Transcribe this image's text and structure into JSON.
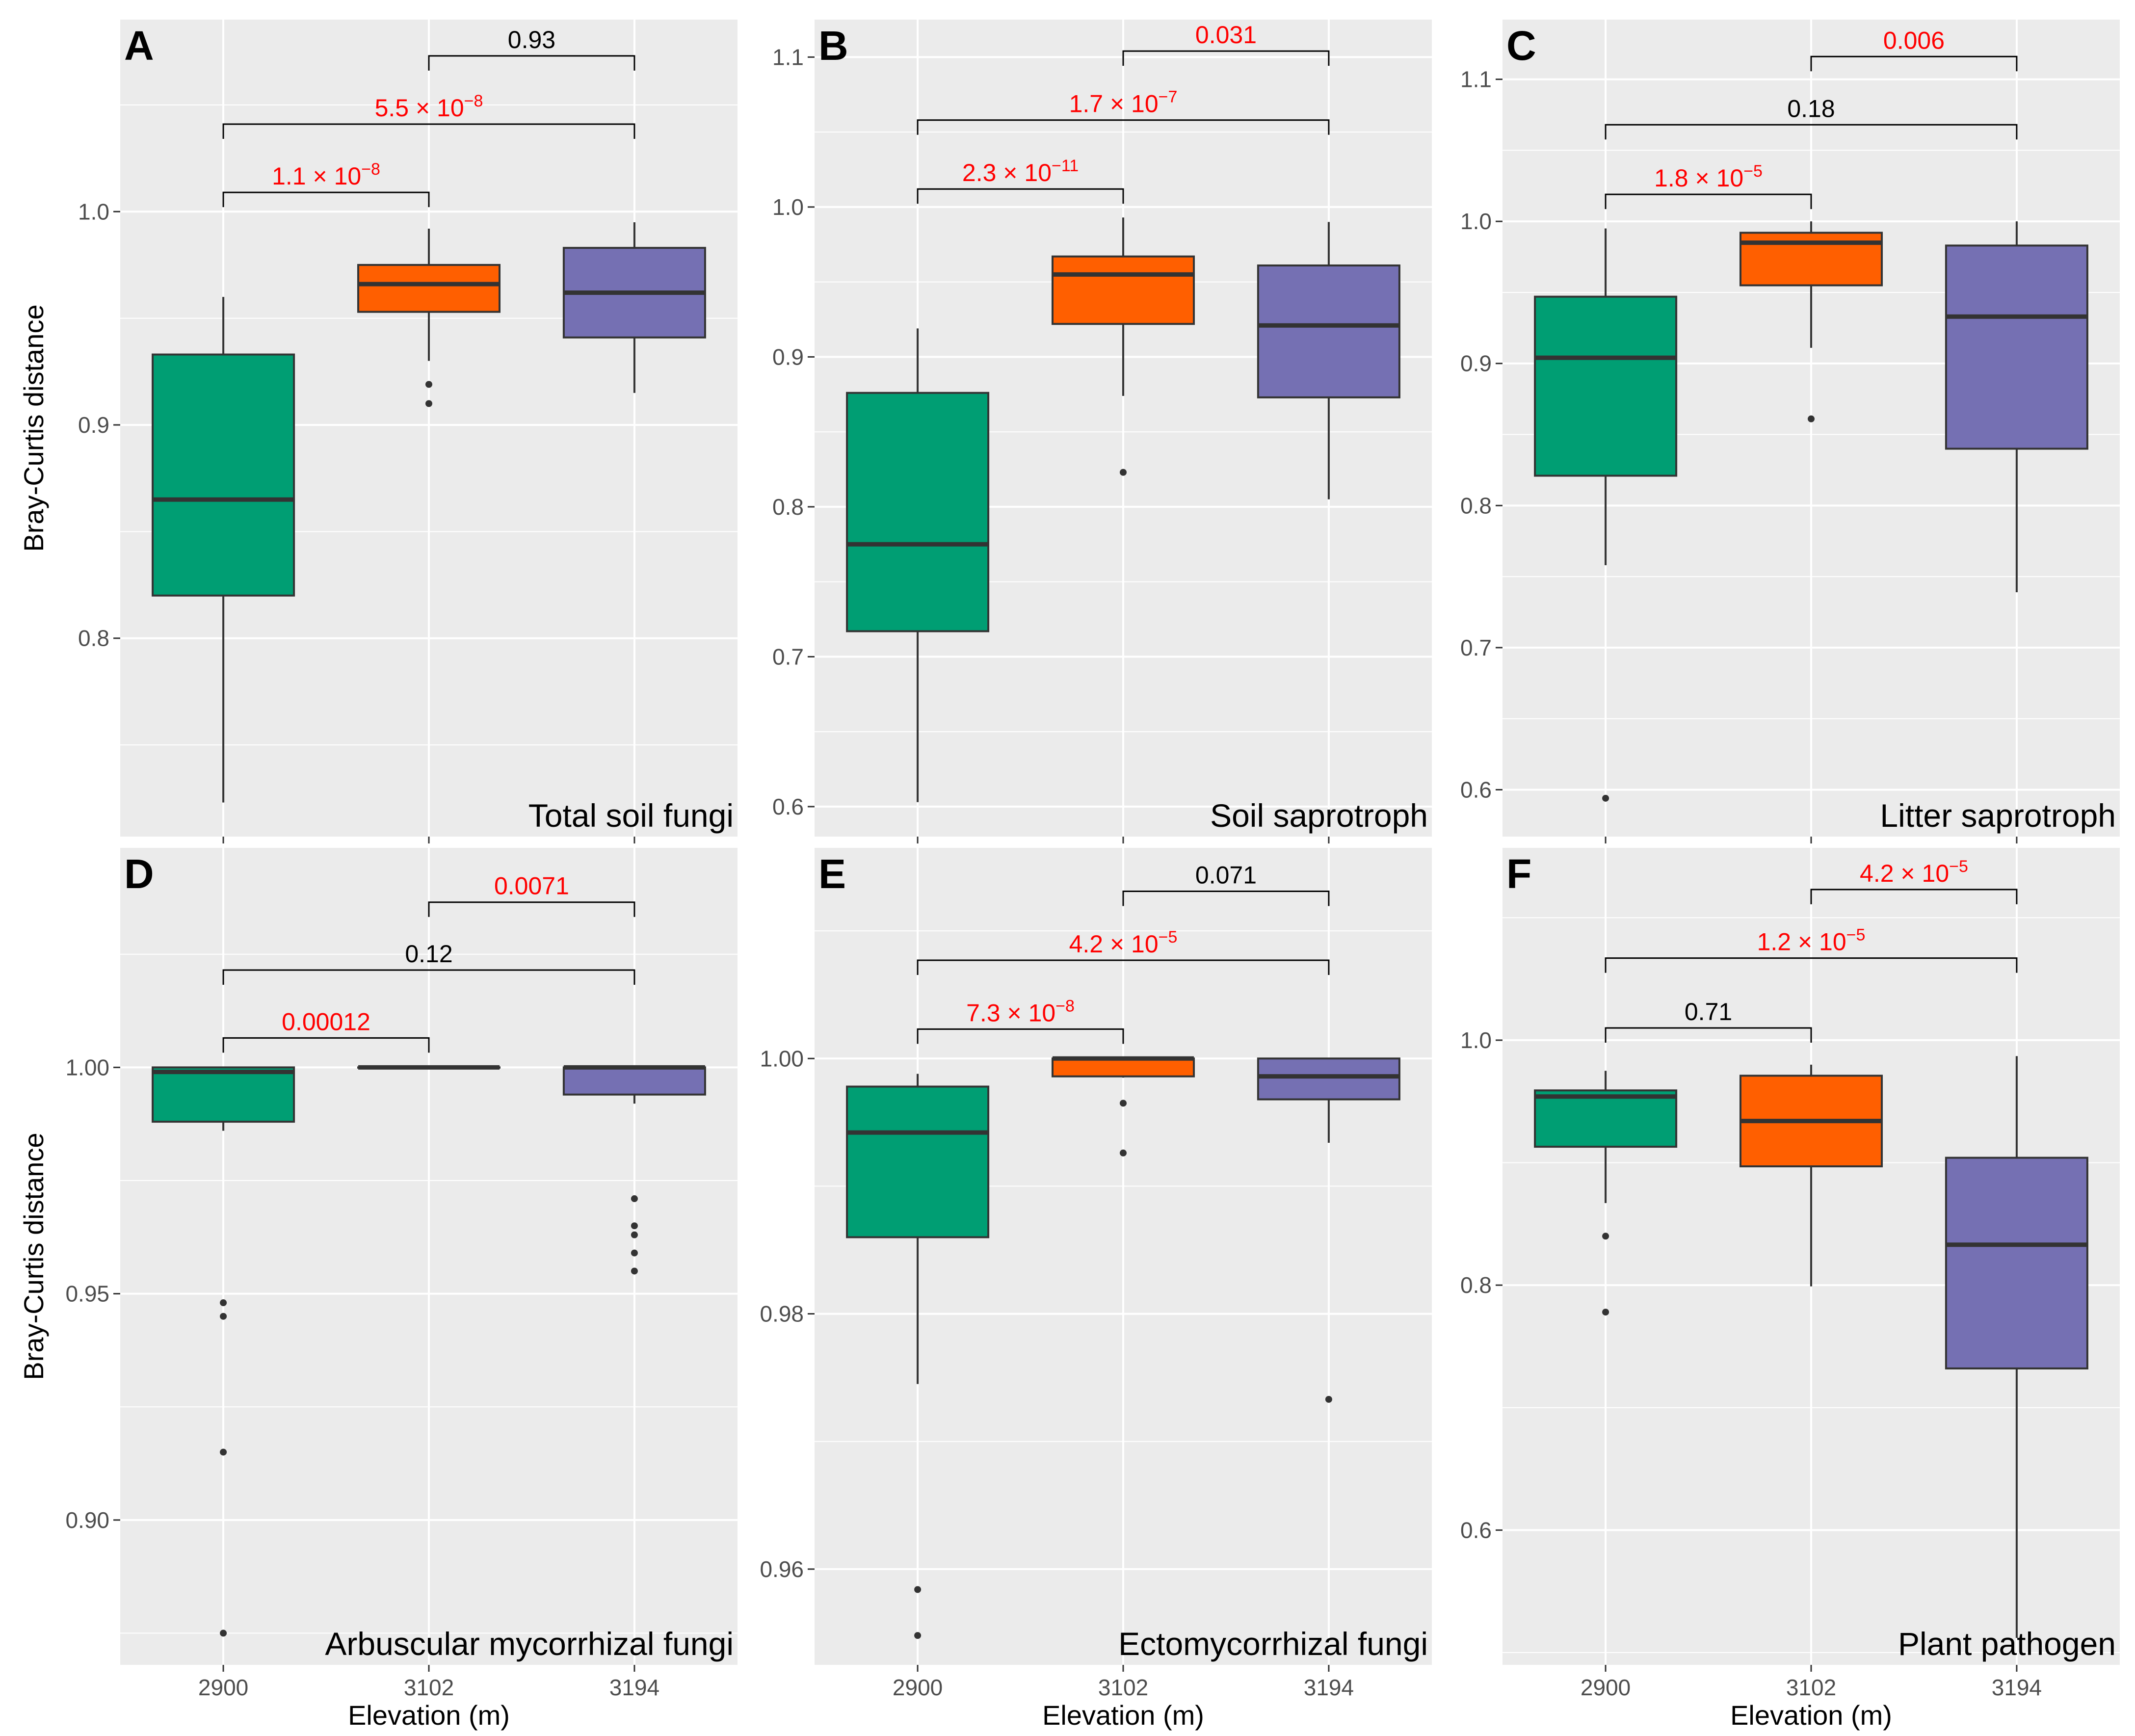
{
  "chart_data": {
    "type": "boxplot",
    "xlabel": "Elevation (m)",
    "ylabel": "Bray-Curtis distance",
    "categories": [
      "2900",
      "3102",
      "3194"
    ],
    "colors": {
      "2900": "#009e73",
      "3102": "#ff5f00",
      "3194": "#7570b3",
      "panel_bg": "#ebebeb",
      "grid": "#ffffff",
      "box_line": "#333333",
      "sig_text": "#ff0000",
      "nonsig_text": "#000000"
    },
    "panels": [
      {
        "letter": "A",
        "subtitle": "Total soil fungi",
        "ylim": [
          0.707,
          1.09
        ],
        "yticks": [
          0.8,
          0.9,
          1.0
        ],
        "ytick_labels": [
          "0.8",
          "0.9",
          "1.0"
        ],
        "boxes": [
          {
            "category": "2900",
            "whisker_low": 0.723,
            "q1": 0.82,
            "median": 0.865,
            "q3": 0.933,
            "whisker_high": 0.96,
            "outliers": []
          },
          {
            "category": "3102",
            "whisker_low": 0.93,
            "q1": 0.953,
            "median": 0.966,
            "q3": 0.975,
            "whisker_high": 0.992,
            "outliers": [
              0.91,
              0.919
            ]
          },
          {
            "category": "3194",
            "whisker_low": 0.915,
            "q1": 0.941,
            "median": 0.962,
            "q3": 0.983,
            "whisker_high": 0.995,
            "outliers": []
          }
        ],
        "comparisons": [
          {
            "pair": [
              "2900",
              "3102"
            ],
            "label": "1.1 × 10",
            "exp": "−8",
            "y": 1.009,
            "significant": true
          },
          {
            "pair": [
              "2900",
              "3194"
            ],
            "label": "5.5 × 10",
            "exp": "−8",
            "y": 1.041,
            "significant": true
          },
          {
            "pair": [
              "3102",
              "3194"
            ],
            "label": "0.93",
            "exp": "",
            "y": 1.073,
            "significant": false
          }
        ]
      },
      {
        "letter": "B",
        "subtitle": "Soil saprotroph",
        "ylim": [
          0.58,
          1.125
        ],
        "yticks": [
          0.6,
          0.7,
          0.8,
          0.9,
          1.0,
          1.1
        ],
        "ytick_labels": [
          "0.6",
          "0.7",
          "0.8",
          "0.9",
          "1.0",
          "1.1"
        ],
        "boxes": [
          {
            "category": "2900",
            "whisker_low": 0.603,
            "q1": 0.717,
            "median": 0.775,
            "q3": 0.876,
            "whisker_high": 0.919,
            "outliers": []
          },
          {
            "category": "3102",
            "whisker_low": 0.874,
            "q1": 0.922,
            "median": 0.955,
            "q3": 0.967,
            "whisker_high": 0.993,
            "outliers": [
              0.823
            ]
          },
          {
            "category": "3194",
            "whisker_low": 0.805,
            "q1": 0.873,
            "median": 0.921,
            "q3": 0.961,
            "whisker_high": 0.99,
            "outliers": []
          }
        ],
        "comparisons": [
          {
            "pair": [
              "2900",
              "3102"
            ],
            "label": "2.3 × 10",
            "exp": "−11",
            "y": 1.012,
            "significant": true
          },
          {
            "pair": [
              "2900",
              "3194"
            ],
            "label": "1.7 × 10",
            "exp": "−7",
            "y": 1.058,
            "significant": true
          },
          {
            "pair": [
              "3102",
              "3194"
            ],
            "label": "0.031",
            "exp": "",
            "y": 1.104,
            "significant": true
          }
        ]
      },
      {
        "letter": "C",
        "subtitle": "Litter saprotroph",
        "ylim": [
          0.567,
          1.142
        ],
        "yticks": [
          0.6,
          0.7,
          0.8,
          0.9,
          1.0,
          1.1
        ],
        "ytick_labels": [
          "0.6",
          "0.7",
          "0.8",
          "0.9",
          "1.0",
          "1.1"
        ],
        "boxes": [
          {
            "category": "2900",
            "whisker_low": 0.758,
            "q1": 0.821,
            "median": 0.904,
            "q3": 0.947,
            "whisker_high": 0.995,
            "outliers": [
              0.594
            ]
          },
          {
            "category": "3102",
            "whisker_low": 0.911,
            "q1": 0.955,
            "median": 0.985,
            "q3": 0.992,
            "whisker_high": 1.0,
            "outliers": [
              0.861
            ]
          },
          {
            "category": "3194",
            "whisker_low": 0.739,
            "q1": 0.84,
            "median": 0.933,
            "q3": 0.983,
            "whisker_high": 1.0,
            "outliers": []
          }
        ],
        "comparisons": [
          {
            "pair": [
              "2900",
              "3102"
            ],
            "label": "1.8 × 10",
            "exp": "−5",
            "y": 1.019,
            "significant": true
          },
          {
            "pair": [
              "2900",
              "3194"
            ],
            "label": "0.18",
            "exp": "",
            "y": 1.068,
            "significant": false
          },
          {
            "pair": [
              "3102",
              "3194"
            ],
            "label": "0.006",
            "exp": "",
            "y": 1.116,
            "significant": true
          }
        ]
      },
      {
        "letter": "D",
        "subtitle": "Arbuscular mycorrhizal fungi",
        "ylim": [
          0.868,
          1.0485
        ],
        "yticks": [
          0.9,
          0.95,
          1.0
        ],
        "ytick_labels": [
          "0.90",
          "0.95",
          "1.00"
        ],
        "boxes": [
          {
            "category": "2900",
            "whisker_low": 0.986,
            "q1": 0.988,
            "median": 0.999,
            "q3": 1.0,
            "whisker_high": 1.0,
            "outliers": [
              0.875,
              0.915,
              0.945,
              0.948
            ]
          },
          {
            "category": "3102",
            "whisker_low": 1.0,
            "q1": 1.0,
            "median": 1.0,
            "q3": 1.0,
            "whisker_high": 1.0,
            "outliers": []
          },
          {
            "category": "3194",
            "whisker_low": 0.992,
            "q1": 0.994,
            "median": 1.0,
            "q3": 1.0,
            "whisker_high": 1.0,
            "outliers": [
              0.955,
              0.959,
              0.963,
              0.965,
              0.971
            ]
          }
        ],
        "comparisons": [
          {
            "pair": [
              "2900",
              "3102"
            ],
            "label": "0.00012",
            "exp": "",
            "y": 1.0065,
            "significant": true
          },
          {
            "pair": [
              "2900",
              "3194"
            ],
            "label": "0.12",
            "exp": "",
            "y": 1.0215,
            "significant": false
          },
          {
            "pair": [
              "3102",
              "3194"
            ],
            "label": "0.0071",
            "exp": "",
            "y": 1.0365,
            "significant": true
          }
        ]
      },
      {
        "letter": "E",
        "subtitle": "Ectomycorrhizal fungi",
        "ylim": [
          0.9525,
          1.0165
        ],
        "yticks": [
          0.96,
          0.98,
          1.0
        ],
        "ytick_labels": [
          "0.96",
          "0.98",
          "1.00"
        ],
        "boxes": [
          {
            "category": "2900",
            "whisker_low": 0.9745,
            "q1": 0.986,
            "median": 0.9942,
            "q3": 0.9978,
            "whisker_high": 0.9988,
            "outliers": [
              0.9548,
              0.9584
            ]
          },
          {
            "category": "3102",
            "whisker_low": 0.9985,
            "q1": 0.9986,
            "median": 1.0,
            "q3": 1.0,
            "whisker_high": 1.0,
            "outliers": [
              0.9926,
              0.9965
            ]
          },
          {
            "category": "3194",
            "whisker_low": 0.9934,
            "q1": 0.9968,
            "median": 0.9986,
            "q3": 1.0,
            "whisker_high": 1.0,
            "outliers": [
              0.9733
            ]
          }
        ],
        "comparisons": [
          {
            "pair": [
              "2900",
              "3102"
            ],
            "label": "7.3 × 10",
            "exp": "−8",
            "y": 1.0023,
            "significant": true
          },
          {
            "pair": [
              "2900",
              "3194"
            ],
            "label": "4.2 × 10",
            "exp": "−5",
            "y": 1.0077,
            "significant": true
          },
          {
            "pair": [
              "3102",
              "3194"
            ],
            "label": "0.071",
            "exp": "",
            "y": 1.0131,
            "significant": false
          }
        ]
      },
      {
        "letter": "F",
        "subtitle": "Plant pathogen",
        "ylim": [
          0.49,
          1.157
        ],
        "yticks": [
          0.6,
          0.8,
          1.0
        ],
        "ytick_labels": [
          "0.6",
          "0.8",
          "1.0"
        ],
        "boxes": [
          {
            "category": "2900",
            "whisker_low": 0.867,
            "q1": 0.913,
            "median": 0.954,
            "q3": 0.959,
            "whisker_high": 0.975,
            "outliers": [
              0.778,
              0.84
            ]
          },
          {
            "category": "3102",
            "whisker_low": 0.799,
            "q1": 0.897,
            "median": 0.934,
            "q3": 0.971,
            "whisker_high": 0.98,
            "outliers": []
          },
          {
            "category": "3194",
            "whisker_low": 0.512,
            "q1": 0.732,
            "median": 0.833,
            "q3": 0.904,
            "whisker_high": 0.987,
            "outliers": []
          }
        ],
        "comparisons": [
          {
            "pair": [
              "2900",
              "3102"
            ],
            "label": "0.71",
            "exp": "",
            "y": 1.01,
            "significant": false
          },
          {
            "pair": [
              "2900",
              "3194"
            ],
            "label": "1.2 × 10",
            "exp": "−5",
            "y": 1.067,
            "significant": true
          },
          {
            "pair": [
              "3102",
              "3194"
            ],
            "label": "4.2 × 10",
            "exp": "−5",
            "y": 1.123,
            "significant": true
          }
        ]
      }
    ]
  }
}
